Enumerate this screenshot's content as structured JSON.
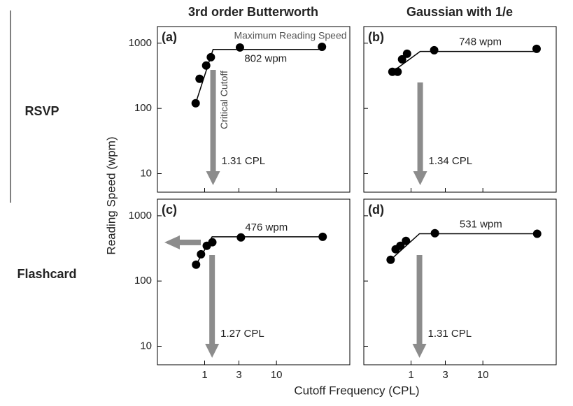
{
  "figure": {
    "columns": [
      "3rd order Butterworth",
      "Gaussian with 1/e"
    ],
    "rows": [
      "RSVP",
      "Flashcard"
    ],
    "ylabel": "Reading Speed (wpm)",
    "xlabel": "Cutoff Frequency (CPL)"
  },
  "chart_data": [
    {
      "type": "scatter",
      "panel": "(a)",
      "xlog": true,
      "ylog": true,
      "xlim": [
        0.22,
        105
      ],
      "ylim": [
        5.2,
        1800
      ],
      "yticks": [
        10,
        100,
        1000
      ],
      "series": [
        {
          "color": "#000000",
          "x": [
            0.75,
            0.85,
            1.05,
            1.22,
            3.1,
            43
          ],
          "values": [
            120,
            285,
            455,
            610,
            860,
            880
          ]
        }
      ],
      "plateau": {
        "value": 802,
        "label": "802 wpm"
      },
      "cutoff": {
        "value": 1.31,
        "label": "1.31 CPL"
      },
      "annotations": [
        "Maximum Reading Speed",
        "Critical Cutoff"
      ],
      "arrow_color": "#8c8c8c"
    },
    {
      "type": "scatter",
      "panel": "(b)",
      "xlog": true,
      "ylog": true,
      "xlim": [
        0.22,
        105
      ],
      "ylim": [
        5.2,
        1800
      ],
      "series": [
        {
          "color": "#000000",
          "x": [
            0.55,
            0.65,
            0.75,
            0.88,
            2.1,
            56
          ],
          "values": [
            364,
            364,
            567,
            690,
            780,
            820
          ]
        }
      ],
      "plateau": {
        "value": 748,
        "label": "748 wpm"
      },
      "cutoff": {
        "value": 1.34,
        "label": "1.34 CPL"
      },
      "arrow_color": "#8c8c8c"
    },
    {
      "type": "scatter",
      "panel": "(c)",
      "xlog": true,
      "ylog": true,
      "xlim": [
        0.22,
        105
      ],
      "ylim": [
        5.2,
        1800
      ],
      "yticks": [
        10,
        100,
        1000
      ],
      "xticks": [
        1,
        3,
        10
      ],
      "series": [
        {
          "color": "#000000",
          "x": [
            0.76,
            0.89,
            1.07,
            1.28,
            3.2,
            44
          ],
          "values": [
            178,
            257,
            347,
            393,
            466,
            476
          ]
        }
      ],
      "plateau": {
        "value": 476,
        "label": "476 wpm"
      },
      "cutoff": {
        "value": 1.27,
        "label": "1.27 CPL"
      },
      "arrow_color": "#8c8c8c"
    },
    {
      "type": "scatter",
      "panel": "(d)",
      "xlog": true,
      "ylog": true,
      "xlim": [
        0.22,
        105
      ],
      "ylim": [
        5.2,
        1800
      ],
      "xticks": [
        1,
        3,
        10
      ],
      "series": [
        {
          "color": "#000000",
          "x": [
            0.52,
            0.61,
            0.71,
            0.85,
            2.15,
            57
          ],
          "values": [
            212,
            307,
            347,
            412,
            540,
            530
          ]
        }
      ],
      "plateau": {
        "value": 531,
        "label": "531 wpm"
      },
      "cutoff": {
        "value": 1.31,
        "label": "1.31 CPL"
      },
      "arrow_color": "#8c8c8c"
    }
  ]
}
